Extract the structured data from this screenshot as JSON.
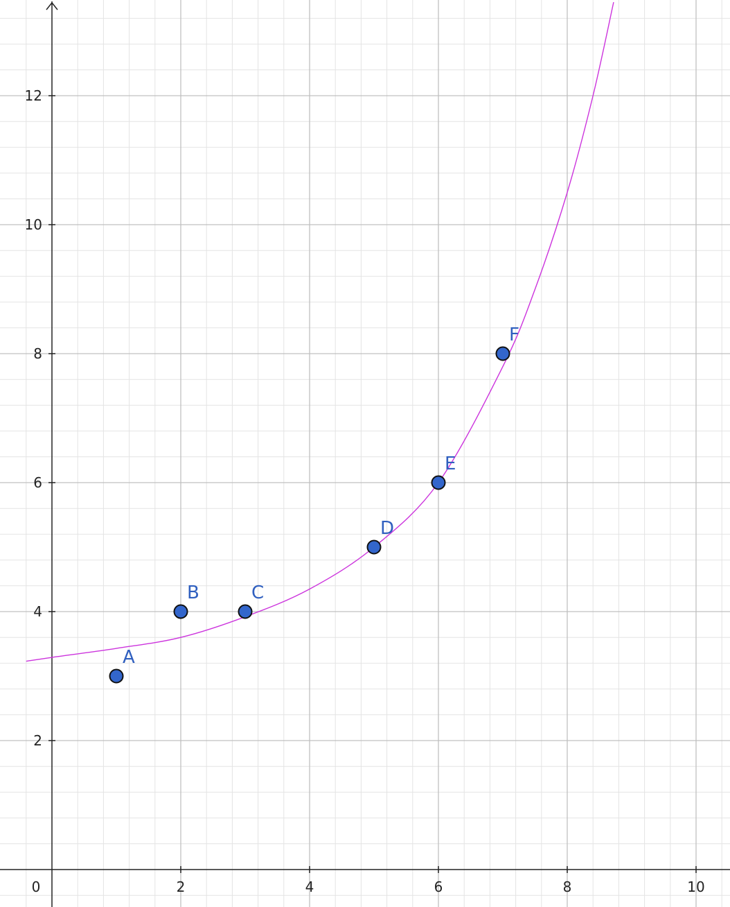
{
  "chart_data": {
    "type": "scatter",
    "title": "",
    "xlabel": "",
    "ylabel": "",
    "xlim": [
      -0.4,
      10.9
    ],
    "ylim": [
      -0.6,
      13.45
    ],
    "grid": true,
    "x_ticks": [
      2,
      4,
      6,
      8,
      10
    ],
    "y_ticks": [
      2,
      4,
      6,
      8,
      10,
      12
    ],
    "origin_label": "0",
    "points": [
      {
        "label": "A",
        "x": 1,
        "y": 3
      },
      {
        "label": "B",
        "x": 2,
        "y": 4
      },
      {
        "label": "C",
        "x": 3,
        "y": 4
      },
      {
        "label": "D",
        "x": 5,
        "y": 5
      },
      {
        "label": "E",
        "x": 6,
        "y": 6
      },
      {
        "label": "F",
        "x": 7,
        "y": 8
      }
    ],
    "curve": {
      "type": "fitted curve",
      "samples": [
        {
          "x": -0.4,
          "y": 3.23
        },
        {
          "x": 0,
          "y": 3.29
        },
        {
          "x": 1,
          "y": 3.43
        },
        {
          "x": 2,
          "y": 3.6
        },
        {
          "x": 3,
          "y": 3.92
        },
        {
          "x": 4,
          "y": 4.35
        },
        {
          "x": 5,
          "y": 5.0
        },
        {
          "x": 6,
          "y": 6.0
        },
        {
          "x": 7,
          "y": 7.8
        },
        {
          "x": 7.5,
          "y": 9.0
        },
        {
          "x": 8,
          "y": 10.5
        },
        {
          "x": 8.4,
          "y": 12.0
        },
        {
          "x": 8.72,
          "y": 13.45
        }
      ]
    },
    "colors": {
      "point_fill": "#3366cc",
      "point_stroke": "#111111",
      "point_label": "#2f5fbf",
      "curve": "#cc33dd",
      "major_grid": "#c0c0c0",
      "minor_grid": "#e4e4e4",
      "axis": "#222222"
    }
  }
}
